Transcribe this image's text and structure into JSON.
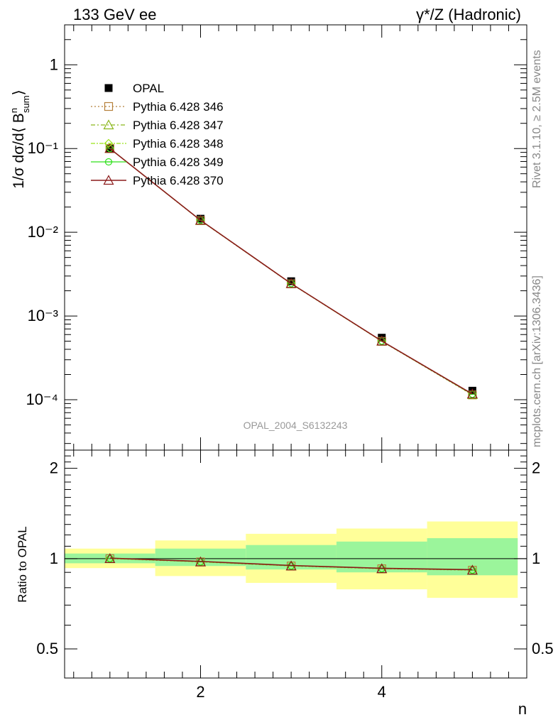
{
  "header": {
    "left": "133 GeV ee",
    "right": "γ*/Z (Hadronic)"
  },
  "side_text": {
    "rivet": "Rivet 3.1.10, ≥ 2.5M events",
    "mcplots": "mcplots.cern.ch [arXiv:1306.3436]"
  },
  "watermark": "OPAL_2004_S6132243",
  "axes": {
    "top_ylabel": "1/σ dσ/d⟨ B",
    "top_ylabel_sup": "n",
    "top_ylabel_sub": "sum",
    "top_ylabel_end": "⟩",
    "bottom_ylabel": "Ratio to OPAL",
    "xlabel": "n",
    "x_ticks": [
      "2",
      "4"
    ],
    "top_ticks": [
      "10⁻⁴",
      "10⁻³",
      "10⁻²",
      "10⁻¹",
      "1"
    ],
    "ratio_ticks": [
      "0.5",
      "1",
      "2"
    ]
  },
  "chart_data": {
    "type": "line",
    "x": [
      1,
      2,
      3,
      4,
      5
    ],
    "xlim": [
      0.5,
      5.6
    ],
    "ylim": [
      2.5e-05,
      3.0
    ],
    "yscale": "log",
    "ratio_ylim": [
      0.4,
      2.3
    ],
    "ratio_yscale": "log",
    "data": {
      "name": "OPAL",
      "values": [
        0.1,
        0.0145,
        0.0026,
        0.00055,
        0.000128
      ]
    },
    "bands": {
      "x_edges": [
        0.5,
        1.5,
        2.5,
        3.5,
        4.5,
        5.5
      ],
      "stat_lo": [
        0.965,
        0.945,
        0.92,
        0.9,
        0.88
      ],
      "stat_hi": [
        1.04,
        1.08,
        1.11,
        1.14,
        1.17
      ],
      "total_lo": [
        0.93,
        0.875,
        0.83,
        0.79,
        0.74
      ],
      "total_hi": [
        1.08,
        1.15,
        1.21,
        1.26,
        1.33
      ]
    },
    "series": [
      {
        "name": "Pythia 6.428 346",
        "color": "#b5803a",
        "marker": "square-open",
        "dash": "2,3",
        "values": [
          0.1,
          0.0138,
          0.00242,
          0.000498,
          0.000114
        ]
      },
      {
        "name": "Pythia 6.428 347",
        "color": "#8ab61a",
        "marker": "triangle-open",
        "dash": "6,3,2,3",
        "values": [
          0.1,
          0.0138,
          0.00243,
          0.000499,
          0.000115
        ]
      },
      {
        "name": "Pythia 6.428 348",
        "color": "#9be31a",
        "marker": "diamond-open",
        "dash": "6,2,2,2",
        "values": [
          0.1,
          0.0139,
          0.00243,
          0.0005,
          0.000116
        ]
      },
      {
        "name": "Pythia 6.428 349",
        "color": "#2ee01a",
        "marker": "cross-open",
        "dash": "",
        "values": [
          0.1,
          0.0139,
          0.00244,
          0.000501,
          0.000116
        ]
      },
      {
        "name": "Pythia 6.428 370",
        "color": "#8b1a1a",
        "marker": "triangle-open",
        "dash": "",
        "values": [
          0.1,
          0.0139,
          0.00244,
          0.000502,
          0.000117
        ]
      }
    ],
    "ratios": [
      1.0,
      0.975,
      0.945,
      0.925,
      0.915
    ],
    "legend_position": "top-left"
  },
  "colors": {
    "stat_band": "#9bf59b",
    "total_band": "#ffff99",
    "data_marker": "#000000"
  }
}
